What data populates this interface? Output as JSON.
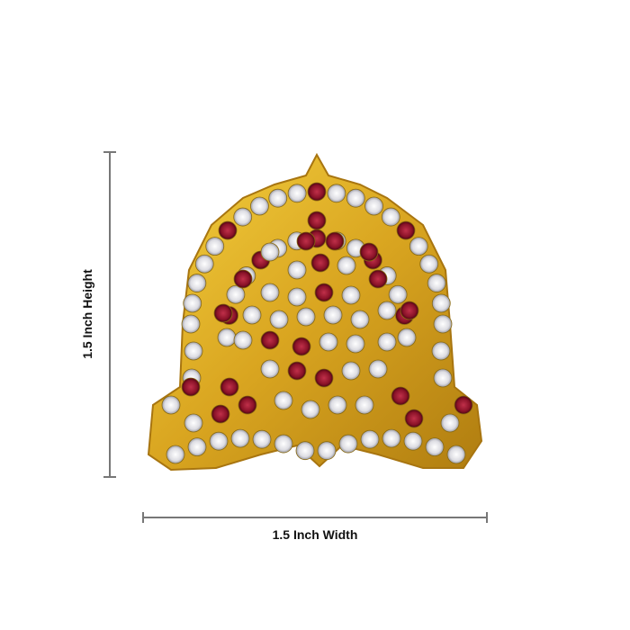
{
  "dimensions": {
    "height_label": "1.5 Inch Height",
    "width_label": "1.5 Inch Width"
  },
  "product": {
    "colors": {
      "gold": "#d9a520",
      "white_stone": "#e8e8ec",
      "red_stone": "#8a1228"
    }
  }
}
